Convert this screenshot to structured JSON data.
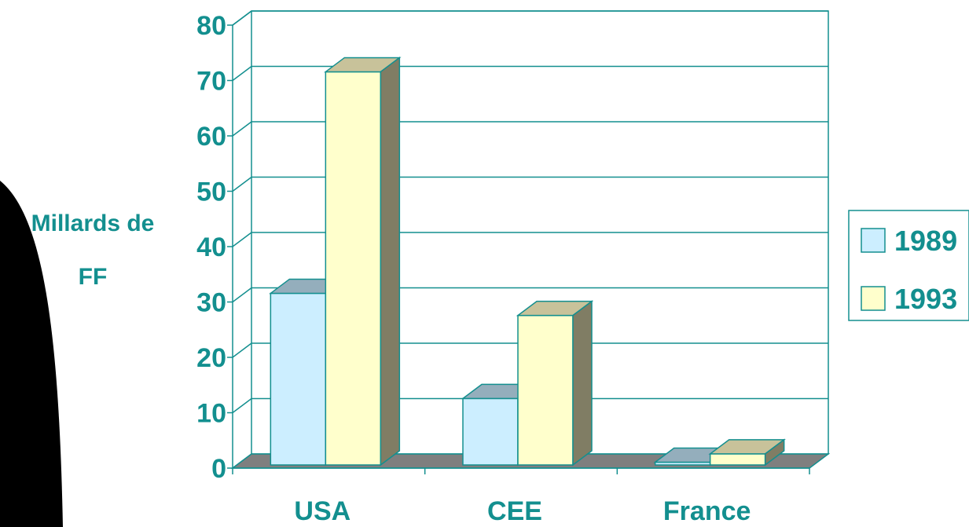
{
  "chart_data": {
    "type": "bar",
    "style": "3d-clustered",
    "categories": [
      "USA",
      "CEE",
      "France"
    ],
    "series": [
      {
        "name": "1989",
        "values": [
          31,
          12,
          0.5
        ],
        "color": "#cceeff",
        "top_color": "#94aebc",
        "side_color": "#7a8a95"
      },
      {
        "name": "1993",
        "values": [
          71,
          27,
          2
        ],
        "color": "#ffffcc",
        "top_color": "#c8c29a",
        "side_color": "#807d64"
      }
    ],
    "ylabel": "Millards de FF",
    "ylabel_lines": [
      "Millards de",
      "FF"
    ],
    "ylim": [
      0,
      80
    ],
    "yticks": [
      "0",
      "10",
      "20",
      "30",
      "40",
      "50",
      "60",
      "70",
      "80"
    ],
    "grid": true,
    "legend_position": "right",
    "axis_color": "#138f8f",
    "floor_color": "#7f7f7f"
  }
}
